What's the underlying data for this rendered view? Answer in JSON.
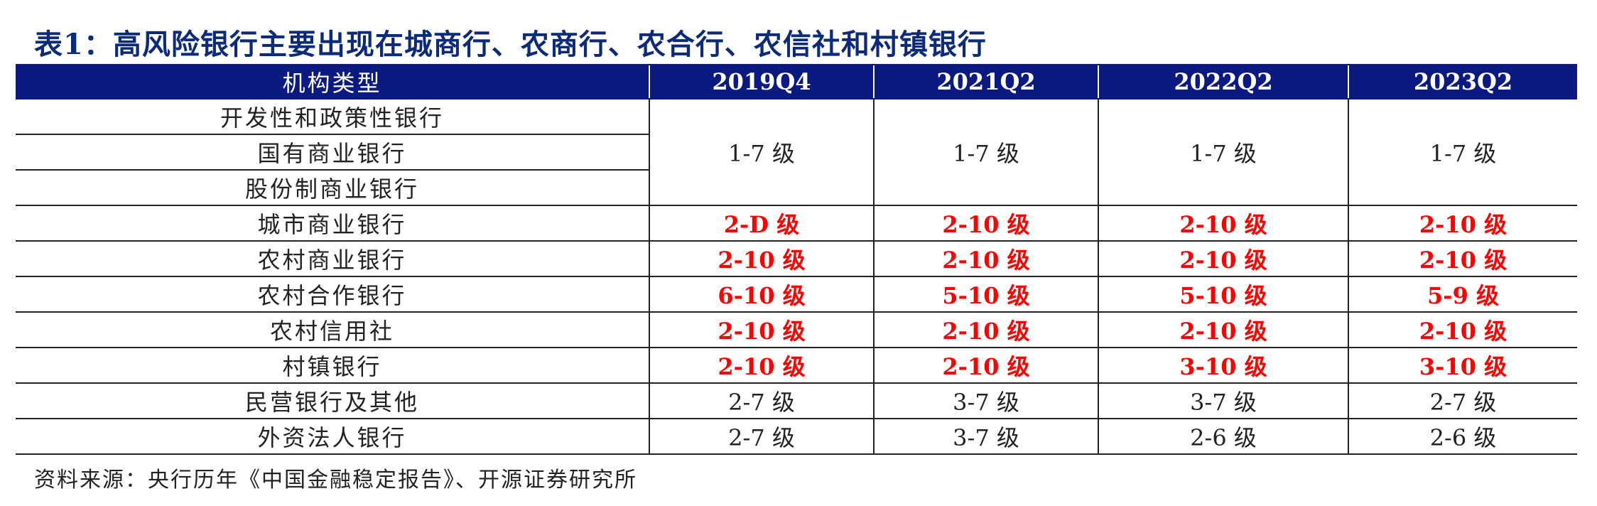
{
  "title": "表1：高风险银行主要出现在城商行、农商行、农合行、农信社和村镇银行",
  "table": {
    "headers": [
      "机构类型",
      "2019Q4",
      "2021Q2",
      "2022Q2",
      "2023Q2"
    ],
    "merged_group": {
      "types": [
        "开发性和政策性银行",
        "国有商业银行",
        "股份制商业银行"
      ],
      "values": [
        "1-7 级",
        "1-7 级",
        "1-7 级",
        "1-7 级"
      ]
    },
    "rows": [
      {
        "type": "城市商业银行",
        "values": [
          "2-D 级",
          "2-10 级",
          "2-10 级",
          "2-10 级"
        ]
      },
      {
        "type": "农村商业银行",
        "values": [
          "2-10 级",
          "2-10 级",
          "2-10 级",
          "2-10 级"
        ]
      },
      {
        "type": "农村合作银行",
        "values": [
          "6-10 级",
          "5-10 级",
          "5-10 级",
          "5-9 级"
        ]
      },
      {
        "type": "农村信用社",
        "values": [
          "2-10 级",
          "2-10 级",
          "2-10 级",
          "2-10 级"
        ]
      },
      {
        "type": "村镇银行",
        "values": [
          "2-10 级",
          "2-10 级",
          "3-10 级",
          "3-10 级"
        ]
      },
      {
        "type": "民营银行及其他",
        "values": [
          "2-7 级",
          "3-7 级",
          "3-7 级",
          "2-7 级"
        ]
      },
      {
        "type": "外资法人银行",
        "values": [
          "2-7 级",
          "3-7 级",
          "2-6 级",
          "2-6 级"
        ]
      }
    ]
  },
  "source": "资料来源：央行历年《中国金融稳定报告》、开源证券研究所",
  "colors": {
    "header_bg": "#0b1a80",
    "title": "#0c2a7a",
    "highlight": "#ff0000"
  }
}
